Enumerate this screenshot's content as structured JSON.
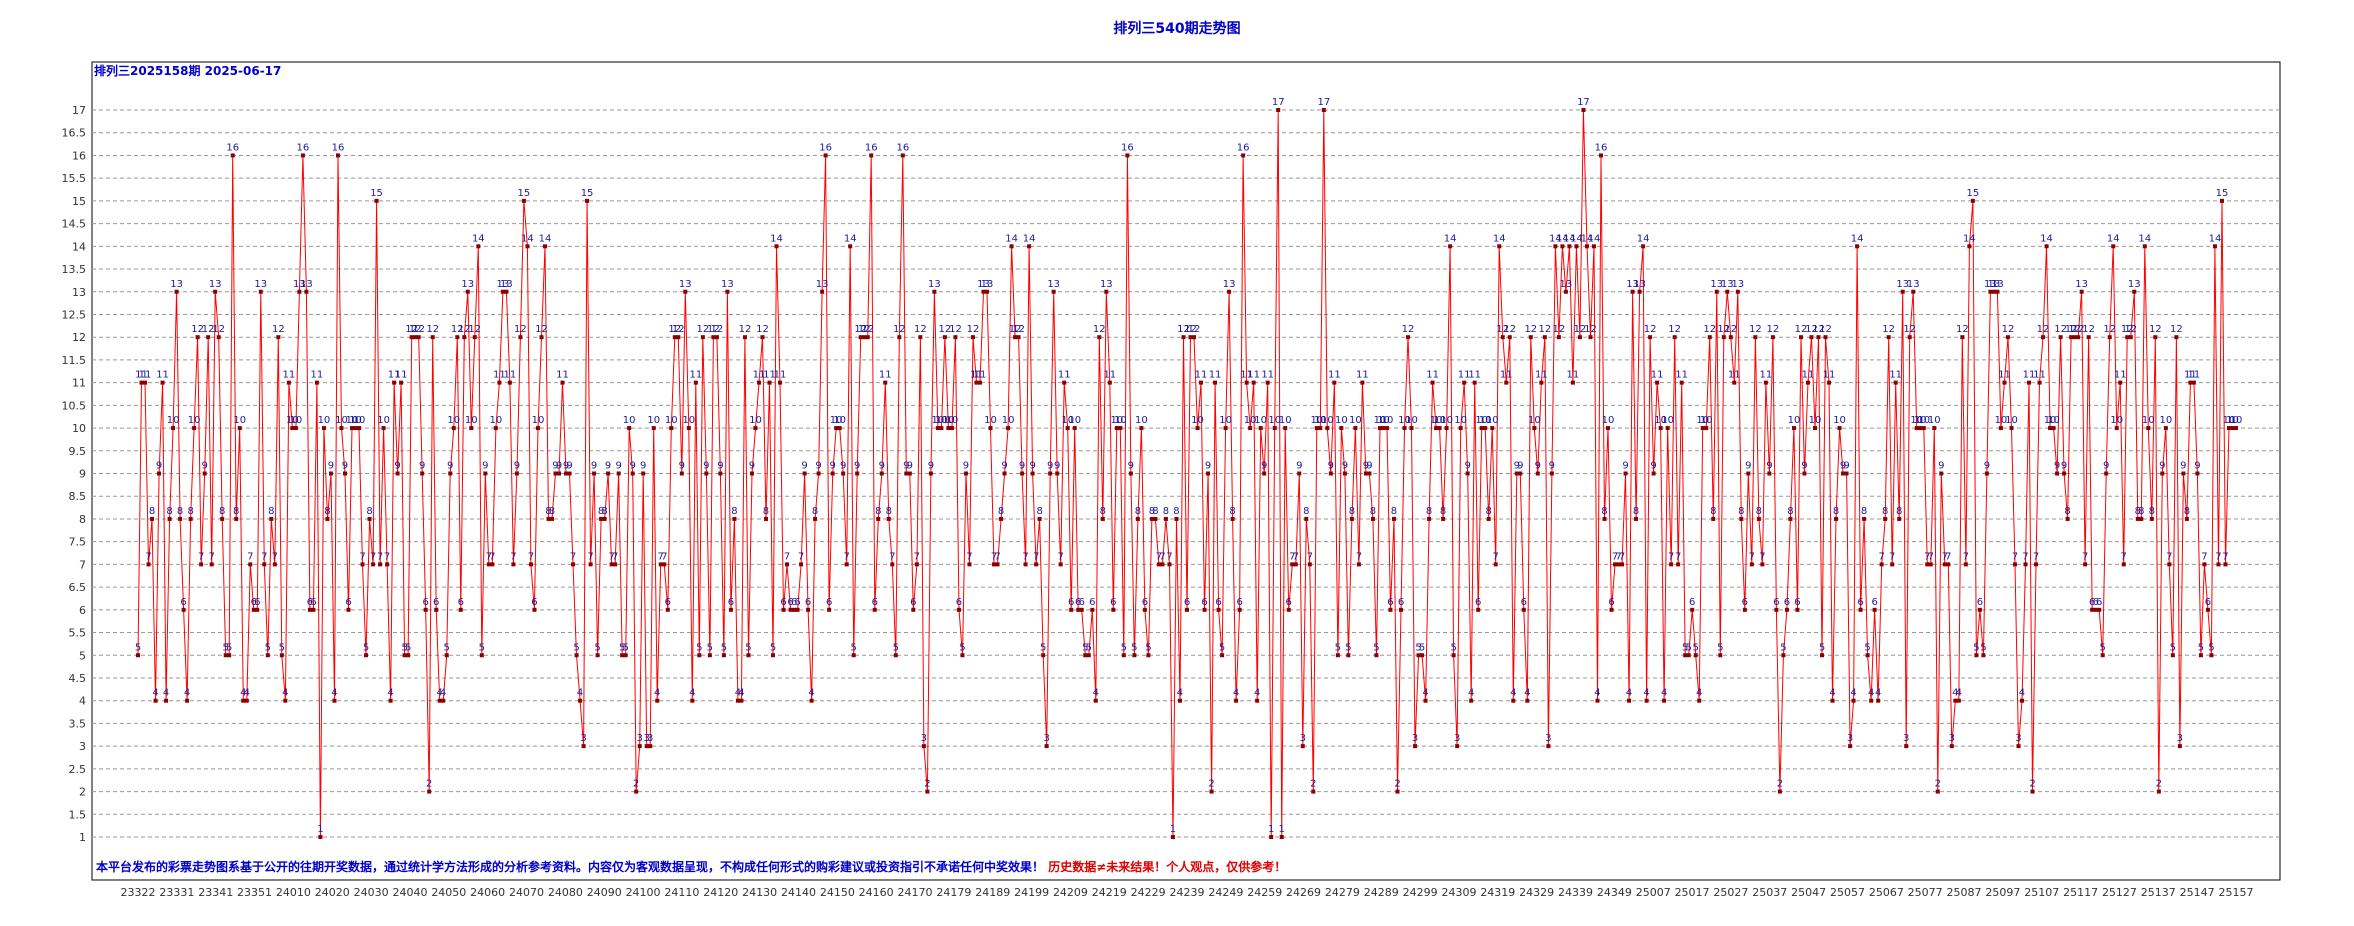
{
  "chart_data": {
    "type": "line",
    "title": "排列三540期走势图",
    "subtitle": "排列三2025158期 2025-06-17",
    "ylim": [
      0.5,
      17.5
    ],
    "yticks": [
      "1",
      "1.5",
      "2",
      "2.5",
      "3",
      "3.5",
      "4",
      "4.5",
      "5",
      "5.5",
      "6",
      "6.5",
      "7",
      "7.5",
      "8",
      "8.5",
      "9",
      "9.5",
      "10",
      "10.5",
      "11",
      "11.5",
      "12",
      "12.5",
      "13",
      "13.5",
      "14",
      "14.5",
      "15",
      "15.5",
      "16",
      "16.5",
      "17"
    ],
    "grid": true,
    "line_color": "#ff0000",
    "marker_color": "#8b0000",
    "xtick_labels": [
      "23322",
      "23331",
      "23341",
      "23351",
      "24010",
      "24020",
      "24030",
      "24040",
      "24050",
      "24060",
      "24070",
      "24080",
      "24090",
      "24100",
      "24110",
      "24120",
      "24130",
      "24140",
      "24150",
      "24160",
      "24170",
      "24179",
      "24189",
      "24199",
      "24209",
      "24219",
      "24229",
      "24239",
      "24249",
      "24259",
      "24269",
      "24279",
      "24289",
      "24299",
      "24309",
      "24319",
      "24329",
      "24339",
      "24349",
      "25007",
      "25017",
      "25027",
      "25037",
      "25047",
      "25057",
      "25067",
      "25077",
      "25087",
      "25097",
      "25107",
      "25117",
      "25127",
      "25137",
      "25147",
      "25157"
    ],
    "values": [
      5,
      11,
      11,
      7,
      8,
      4,
      9,
      11,
      4,
      8,
      10,
      13,
      8,
      6,
      4,
      8,
      10,
      12,
      7,
      9,
      12,
      7,
      13,
      12,
      8,
      5,
      5,
      16,
      8,
      10,
      4,
      4,
      7,
      6,
      6,
      13,
      7,
      5,
      8,
      7,
      12,
      5,
      4,
      11,
      10,
      10,
      13,
      16,
      13,
      6,
      6,
      11,
      1,
      10,
      8,
      9,
      4,
      16,
      10,
      9,
      6,
      10,
      10,
      10,
      7,
      5,
      8,
      7,
      15,
      7,
      10,
      7,
      4,
      11,
      9,
      11,
      5,
      5,
      12,
      12,
      12,
      9,
      6,
      2,
      12,
      6,
      4,
      4,
      5,
      9,
      10,
      12,
      6,
      12,
      13,
      10,
      12,
      14,
      5,
      9,
      7,
      7,
      10,
      11,
      13,
      13,
      11,
      7,
      9,
      12,
      15,
      14,
      7,
      6,
      10,
      12,
      14,
      8,
      8,
      9,
      9,
      11,
      9,
      9,
      7,
      5,
      4,
      3,
      15,
      7,
      9,
      5,
      8,
      8,
      9,
      7,
      7,
      9,
      5,
      5,
      10,
      9,
      2,
      3,
      9,
      3,
      3,
      10,
      4,
      7,
      7,
      6,
      10,
      12,
      12,
      9,
      13,
      10,
      4,
      11,
      5,
      12,
      9,
      5,
      12,
      12,
      9,
      5,
      13,
      6,
      8,
      4,
      4,
      12,
      5,
      9,
      10,
      11,
      12,
      8,
      11,
      5,
      14,
      11,
      6,
      7,
      6,
      6,
      6,
      7,
      9,
      6,
      4,
      8,
      9,
      13,
      16,
      6,
      9,
      10,
      10,
      9,
      7,
      14,
      5,
      9,
      12,
      12,
      12,
      16,
      6,
      8,
      9,
      11,
      8,
      7,
      5,
      12,
      16,
      9,
      9,
      6,
      7,
      12,
      3,
      2,
      9,
      13,
      10,
      10,
      12,
      10,
      10,
      12,
      6,
      5,
      9,
      7,
      12,
      11,
      11,
      13,
      13,
      10,
      7,
      7,
      8,
      9,
      10,
      14,
      12,
      12,
      9,
      7,
      14,
      9,
      7,
      8,
      5,
      3,
      9,
      13,
      9,
      7,
      11,
      10,
      6,
      10,
      6,
      6,
      5,
      5,
      6,
      4,
      12,
      8,
      13,
      11,
      6,
      10,
      10,
      5,
      16,
      9,
      5,
      8,
      10,
      6,
      5,
      8,
      8,
      7,
      7,
      8,
      7,
      1,
      8,
      4,
      12,
      6,
      12,
      12,
      10,
      11,
      6,
      9,
      2,
      11,
      6,
      5,
      10,
      13,
      8,
      4,
      6,
      16,
      11,
      10,
      11,
      4,
      10,
      9,
      11,
      1,
      10,
      17,
      1,
      10,
      6,
      7,
      7,
      9,
      3,
      8,
      7,
      2,
      10,
      10,
      17,
      10,
      9,
      11,
      5,
      10,
      9,
      5,
      8,
      10,
      7,
      11,
      9,
      9,
      8,
      5,
      10,
      10,
      10,
      6,
      8,
      2,
      6,
      10,
      12,
      10,
      3,
      5,
      5,
      4,
      8,
      11,
      10,
      10,
      8,
      10,
      14,
      5,
      3,
      10,
      11,
      9,
      4,
      11,
      6,
      10,
      10,
      8,
      10,
      7,
      14,
      12,
      11,
      12,
      4,
      9,
      9,
      6,
      4,
      12,
      10,
      9,
      11,
      12,
      3,
      9,
      14,
      12,
      14,
      13,
      14,
      11,
      14,
      12,
      17,
      14,
      12,
      14,
      4,
      16,
      8,
      10,
      6,
      7,
      7,
      7,
      9,
      4,
      13,
      8,
      13,
      14,
      4,
      12,
      9,
      11,
      10,
      4,
      10,
      7,
      12,
      7,
      11,
      5,
      5,
      6,
      5,
      4,
      10,
      10,
      12,
      8,
      13,
      5,
      12,
      13,
      12,
      11,
      13,
      8,
      6,
      9,
      7,
      12,
      8,
      7,
      11,
      9,
      12,
      6,
      2,
      5,
      6,
      8,
      10,
      6,
      12,
      9,
      11,
      12,
      10,
      12,
      5,
      12,
      11,
      4,
      8,
      10,
      9,
      9,
      3,
      4,
      14,
      6,
      8,
      5,
      4,
      6,
      4,
      7,
      8,
      12,
      7,
      11,
      8,
      13,
      3,
      12,
      13,
      10,
      10,
      10,
      7,
      7,
      10,
      2,
      9,
      7,
      7,
      3,
      4,
      4,
      12,
      7,
      14,
      15,
      5,
      6,
      5,
      9,
      13,
      13,
      13,
      10,
      11,
      12,
      10,
      7,
      3,
      4,
      7,
      11,
      2,
      7,
      11,
      12,
      14,
      10,
      10,
      9,
      12,
      9,
      8,
      12,
      12,
      12,
      13,
      7,
      12,
      6,
      6,
      6,
      5,
      9,
      12,
      14,
      10,
      11,
      7,
      12,
      12,
      13,
      8,
      8,
      14,
      10,
      8,
      12,
      2,
      9,
      10,
      7,
      5,
      12,
      3,
      9,
      8,
      11,
      11,
      9,
      5,
      7,
      6,
      5,
      14,
      7,
      15,
      7,
      10,
      10,
      10
    ]
  },
  "footer_note": {
    "blue": "本平台发布的彩票走势图系基于公开的往期开奖数据，通过统计学方法形成的分析参考资料。内容仅为客观数据呈现，不构成任何形式的购彩建议或投资指引不承诺任何中奖效果！",
    "red": "历史数据≠未来结果！个人观点，仅供参考！"
  }
}
